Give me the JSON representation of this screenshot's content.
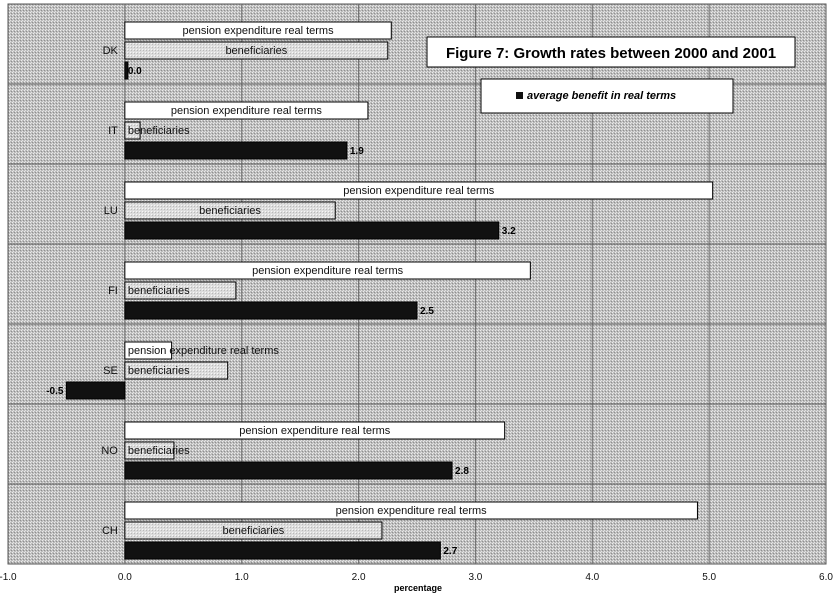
{
  "chart_data": {
    "type": "bar",
    "orientation": "horizontal",
    "title": "Figure 7: Growth rates between 2000 and 2001",
    "xlabel": "percentage",
    "xlim": [
      -1.0,
      6.0
    ],
    "x_ticks": [
      "-1.0",
      "0.0",
      "1.0",
      "2.0",
      "3.0",
      "4.0",
      "5.0",
      "6.0"
    ],
    "categories": [
      "DK",
      "IT",
      "LU",
      "FI",
      "SE",
      "NO",
      "CH"
    ],
    "series": [
      {
        "name": "pension expenditure real terms",
        "bar_label": "pension expenditure real terms",
        "color": "#ffffff",
        "values": [
          2.28,
          2.08,
          5.03,
          3.47,
          0.4,
          3.25,
          4.9
        ]
      },
      {
        "name": "beneficiaries",
        "bar_label": "beneficiaries",
        "color": "#d6d6d6",
        "values": [
          2.25,
          0.13,
          1.8,
          0.95,
          0.88,
          0.42,
          2.2
        ]
      },
      {
        "name": "average benefit in real terms",
        "color": "#111111",
        "values": [
          0.0,
          1.9,
          3.2,
          2.5,
          -0.5,
          2.8,
          2.7
        ],
        "data_labels": [
          "0.0",
          "1.9",
          "3.2",
          "2.5",
          "-0.5",
          "2.8",
          "2.7"
        ]
      }
    ],
    "legend": {
      "items": [
        "average benefit in real terms"
      ],
      "placement": "top-right"
    },
    "grid": true,
    "colors": {
      "plot_background": "#c4c4c4",
      "pension_bar": "#ffffff",
      "beneficiaries_bar": "#d6d6d6",
      "average_benefit_bar": "#111111"
    }
  }
}
